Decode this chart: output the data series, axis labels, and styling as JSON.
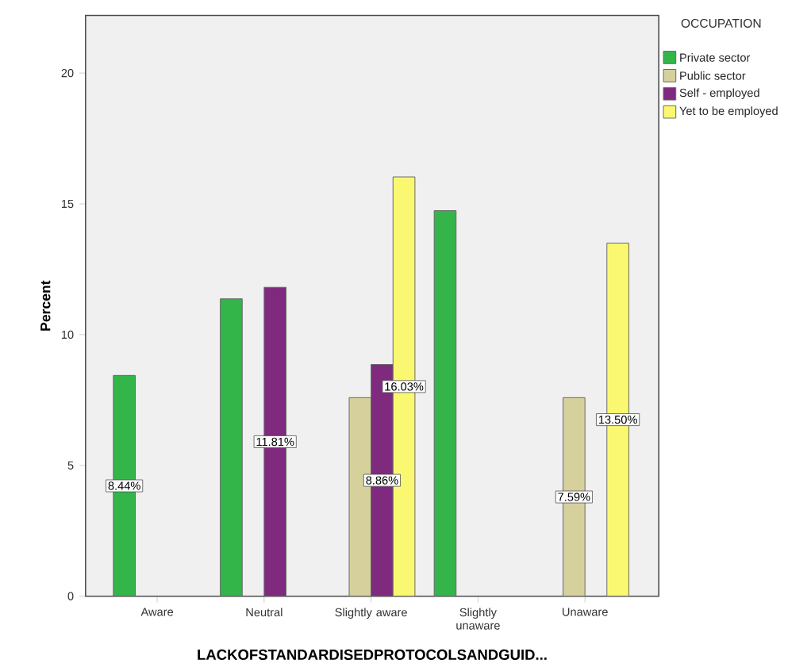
{
  "chart_data": {
    "type": "bar",
    "xlabel": "LACKOFSTANDARDISEDPROTOCOLSANDGUID...",
    "ylabel": "Percent",
    "legend_title": "OCCUPATION",
    "categories": [
      "Aware",
      "Neutral",
      "Slightly aware",
      "Slightly unaware",
      "Unaware"
    ],
    "series": [
      {
        "name": "Private sector",
        "color": "#33b54a",
        "values": [
          8.44,
          11.37,
          null,
          14.74,
          null
        ],
        "value_labels": [
          "8.44%",
          null,
          null,
          null,
          null
        ]
      },
      {
        "name": "Public sector",
        "color": "#d6d09c",
        "values": [
          null,
          null,
          7.59,
          null,
          7.59
        ],
        "value_labels": [
          null,
          null,
          null,
          null,
          "7.59%"
        ]
      },
      {
        "name": "Self - employed",
        "color": "#7f2a7f",
        "values": [
          null,
          11.81,
          8.86,
          null,
          null
        ],
        "value_labels": [
          null,
          "11.81%",
          "8.86%",
          null,
          null
        ]
      },
      {
        "name": "Yet to be employed",
        "color": "#faf870",
        "values": [
          null,
          null,
          16.03,
          null,
          13.5
        ],
        "value_labels": [
          null,
          null,
          "16.03%",
          null,
          "13.50%"
        ]
      }
    ],
    "ylim": [
      0,
      22.2
    ],
    "yticks": [
      0,
      5,
      10,
      15,
      20
    ],
    "legend": "right"
  }
}
